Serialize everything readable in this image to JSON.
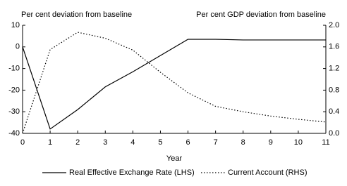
{
  "chart_data": {
    "type": "line",
    "left_axis_label": "Per cent deviation from baseline",
    "right_axis_label": "Per cent GDP deviation from baseline",
    "x_label": "Year",
    "x": [
      0,
      1,
      2,
      3,
      4,
      5,
      6,
      7,
      8,
      9,
      10,
      11
    ],
    "xlim": [
      0,
      11
    ],
    "xticks": [
      0,
      1,
      2,
      3,
      4,
      5,
      6,
      7,
      8,
      9,
      10,
      11
    ],
    "ylim": [
      -40,
      10
    ],
    "yticks": [
      -40,
      -30,
      -20,
      -10,
      0,
      10
    ],
    "y2lim": [
      0,
      2
    ],
    "y2ticks": [
      {
        "value": 0,
        "label": "0.0"
      },
      {
        "value": 0.4,
        "label": "0.4"
      },
      {
        "value": 0.8,
        "label": "0.8"
      },
      {
        "value": 1.2,
        "label": "1.2"
      },
      {
        "value": 1.6,
        "label": "1.6"
      },
      {
        "value": 2,
        "label": "2.0"
      }
    ],
    "series": [
      {
        "name": "Real Effective Exchange Rate (LHS)",
        "color": "#000000",
        "style": "solid",
        "values": [
          0,
          -38,
          -29,
          -18.5,
          -11.5,
          -4,
          3.5,
          3.5,
          3.2,
          3.2,
          3.2,
          3.2
        ]
      },
      {
        "name": "Current Account (RHS)",
        "color": "#000000",
        "style": "dotted",
        "axis": "y2",
        "values": [
          0,
          1.55,
          1.87,
          1.76,
          1.54,
          1.13,
          0.75,
          0.5,
          0.4,
          0.32,
          0.26,
          0.21
        ]
      }
    ]
  }
}
